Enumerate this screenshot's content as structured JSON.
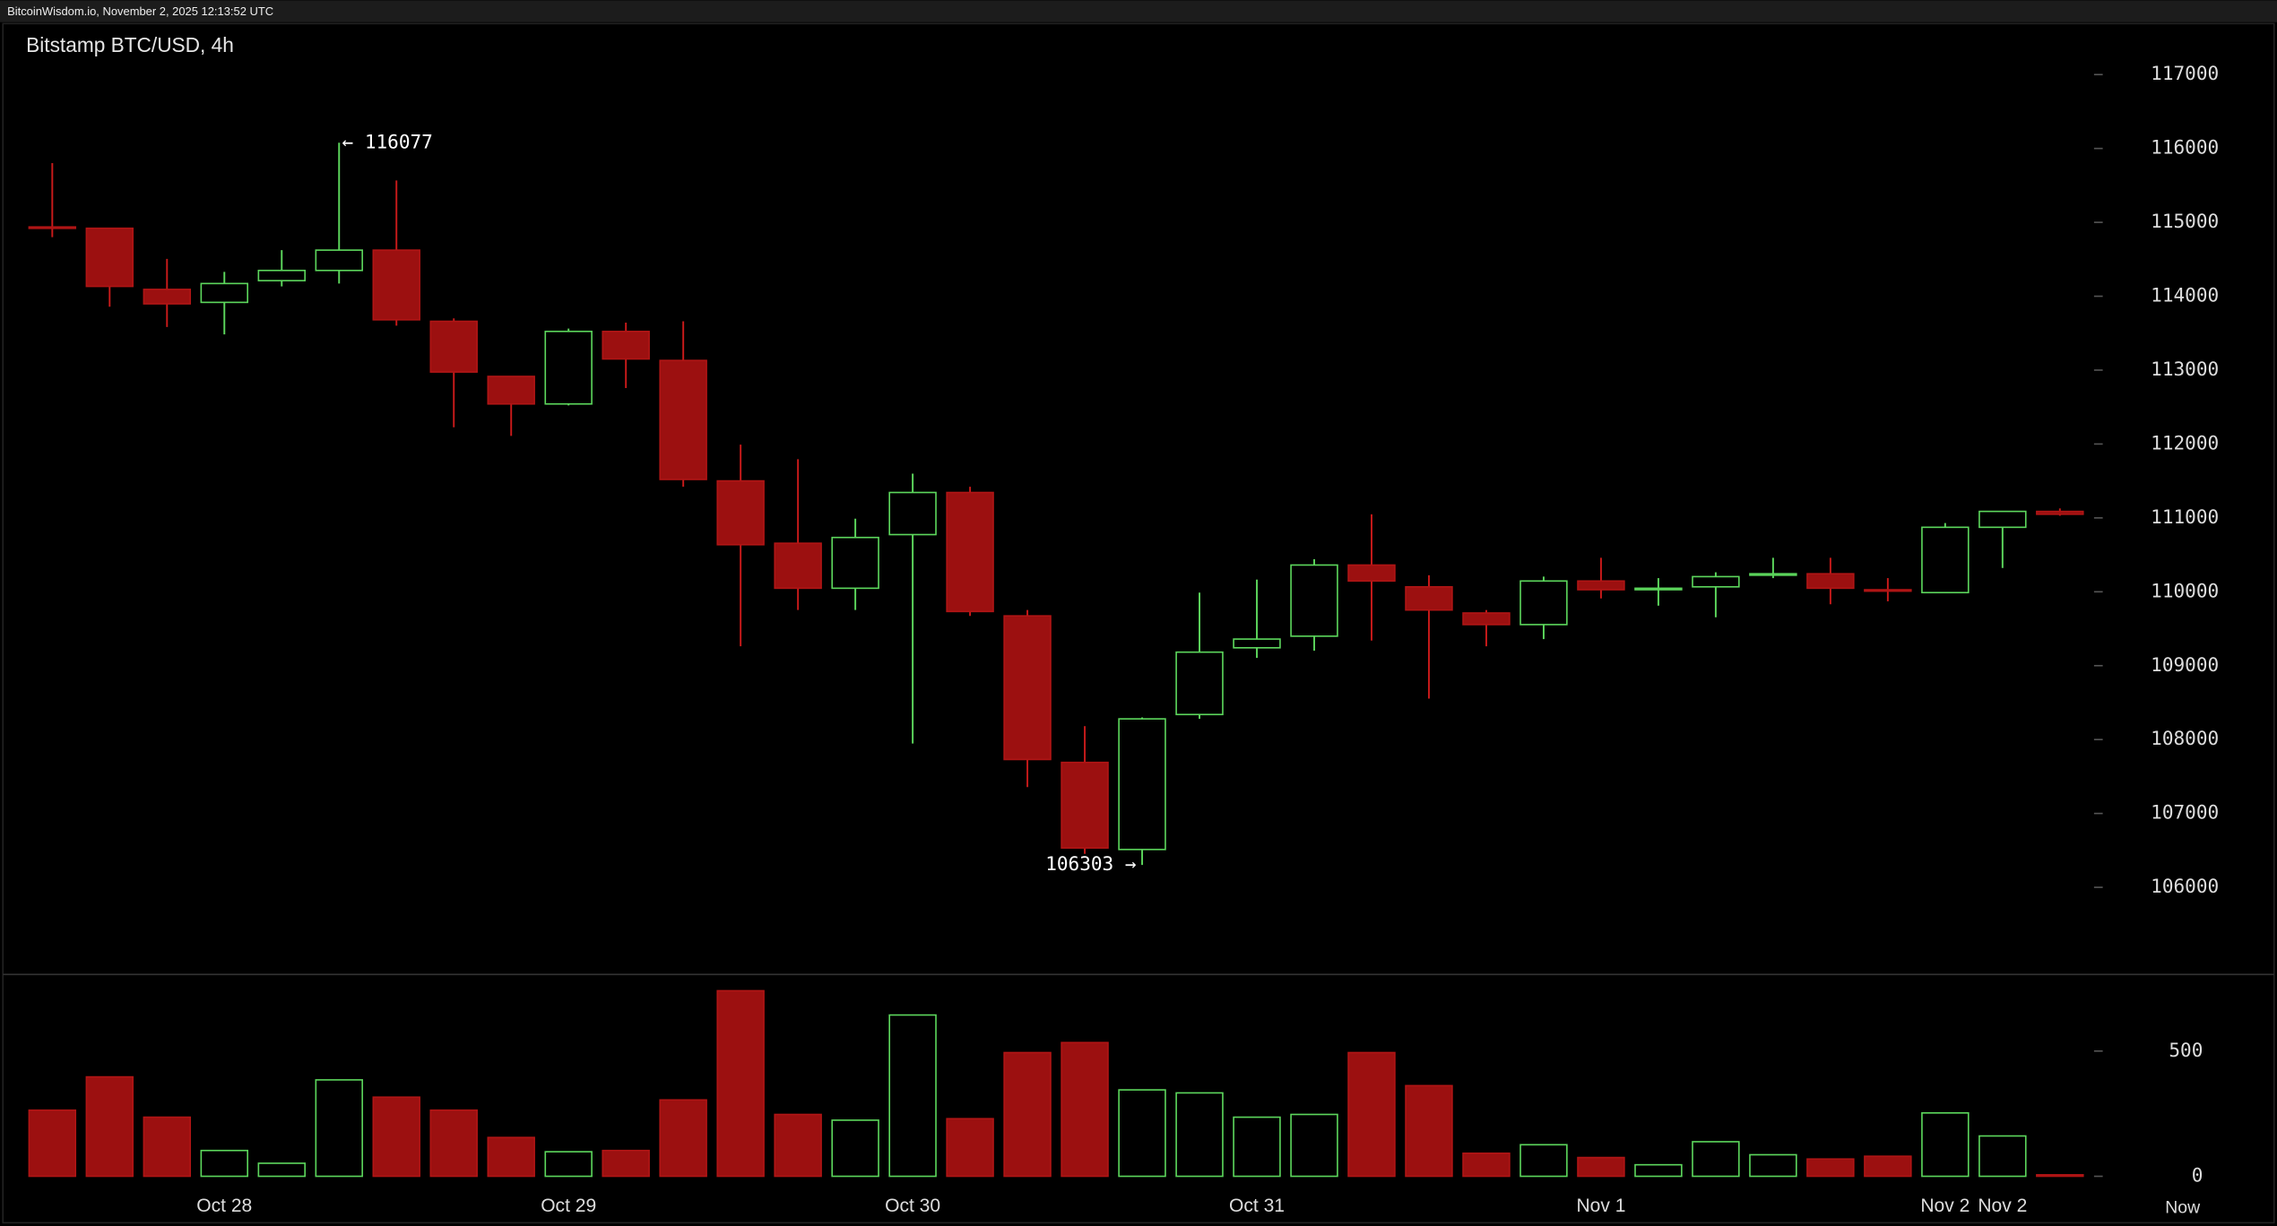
{
  "chart_data": {
    "type": "candlestick",
    "header": "BitcoinWisdom.io, November 2, 2025 12:13:52 UTC",
    "title": "Bitstamp BTC/USD, 4h",
    "categories": [
      null,
      null,
      null,
      "Oct 28",
      null,
      null,
      null,
      null,
      null,
      "Oct 29",
      null,
      null,
      null,
      null,
      null,
      "Oct 30",
      null,
      null,
      null,
      null,
      null,
      "Oct 31",
      null,
      null,
      null,
      null,
      null,
      "Nov 1",
      null,
      null,
      null,
      null,
      null,
      "Nov 2",
      "Nov 2",
      null
    ],
    "now_label": "Now",
    "open": [
      114938,
      114920,
      114093,
      113917,
      114211,
      114349,
      114624,
      113661,
      112915,
      112542,
      113524,
      113131,
      111501,
      110657,
      110048,
      110774,
      111344,
      109674,
      107691,
      106512,
      108339,
      109242,
      109399,
      110362,
      110067,
      109713,
      109556,
      110146,
      110028,
      110067,
      110224,
      110244,
      110028,
      109989,
      110873,
      111088
    ],
    "high": [
      115802,
      114920,
      114506,
      114329,
      114624,
      116077,
      115566,
      113700,
      112915,
      113563,
      113642,
      113661,
      111992,
      111795,
      110990,
      111599,
      111422,
      109753,
      108182,
      108300,
      109989,
      110165,
      110441,
      111049,
      110224,
      109753,
      110205,
      110460,
      110185,
      110264,
      110460,
      110460,
      110185,
      110931,
      111088,
      111128
    ],
    "low": [
      114800,
      113858,
      113583,
      113484,
      114133,
      114172,
      113602,
      112227,
      112110,
      112522,
      112758,
      111422,
      109262,
      109753,
      109753,
      107946,
      109674,
      107357,
      106453,
      106303,
      108280,
      109105,
      109203,
      109340,
      108555,
      109262,
      109360,
      109910,
      109812,
      109655,
      110185,
      109831,
      109871,
      109989,
      110322,
      111029
    ],
    "close": [
      114920,
      114133,
      113897,
      114172,
      114349,
      114624,
      113681,
      112974,
      112542,
      113524,
      113151,
      111520,
      110637,
      110048,
      110735,
      111344,
      109733,
      107730,
      106532,
      108280,
      109183,
      109360,
      110362,
      110146,
      109753,
      109556,
      110146,
      110028,
      110048,
      110205,
      110244,
      110048,
      110009,
      110873,
      111088,
      111049
    ],
    "volume": [
      264,
      397,
      236,
      103,
      52,
      385,
      316,
      264,
      155,
      98,
      103,
      305,
      741,
      247,
      224,
      644,
      230,
      494,
      534,
      345,
      333,
      236,
      247,
      494,
      362,
      92,
      126,
      75,
      46,
      138,
      86,
      69,
      80,
      253,
      161,
      6
    ],
    "ylim": [
      104840,
      117690
    ],
    "yticks": [
      106000,
      107000,
      108000,
      109000,
      110000,
      111000,
      112000,
      113000,
      114000,
      115000,
      116000,
      117000
    ],
    "volume_lim": [
      0,
      800
    ],
    "volume_ticks": [
      0,
      500
    ],
    "up_color": "#5cd65c",
    "down_color": "#9c1010",
    "annotations": {
      "high": "← 116077",
      "low": "106303 →"
    }
  }
}
